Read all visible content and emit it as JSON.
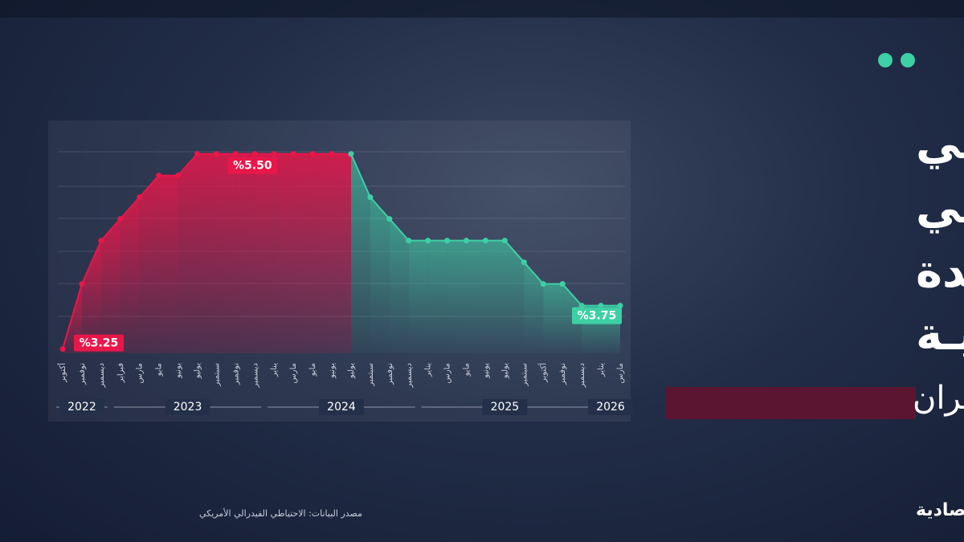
{
  "headline": [
    "الفيدرالـــي",
    "الأمريكـــي",
    "يثبت الفائدة",
    "للمرة الثانيـة"
  ],
  "subtitle": "وسط حرب إيـران",
  "source": "مصدر البيانات: الاحتياطي الفيدرالي الأمريكي",
  "brand": "الاقتصادية",
  "chart_data": {
    "type": "line",
    "groups": [
      {
        "label": "2022",
        "categories": [
          "أكتوبر",
          "نوفمبر",
          "ديسمبر"
        ]
      },
      {
        "label": "2023",
        "categories": [
          "فبراير",
          "مارس",
          "مايو",
          "يونيو",
          "يوليو",
          "سبتمبر",
          "نوفمبر",
          "ديسمبر"
        ]
      },
      {
        "label": "2024",
        "categories": [
          "يناير",
          "مارس",
          "مايو",
          "يونيو",
          "يوليو",
          "سبتمبر",
          "نوفمبر",
          "ديسمبر"
        ]
      },
      {
        "label": "2025",
        "categories": [
          "يناير",
          "مارس",
          "مايو",
          "يونيو",
          "يوليو",
          "سبتمبر",
          "أكتوبر",
          "نوفمبر",
          "ديسمبر"
        ]
      },
      {
        "label": "2026",
        "categories": [
          "يناير",
          "مارس"
        ]
      }
    ],
    "values": [
      3.25,
      4.0,
      4.5,
      4.75,
      5.0,
      5.25,
      5.25,
      5.5,
      5.5,
      5.5,
      5.5,
      5.5,
      5.5,
      5.5,
      5.5,
      5.5,
      5.0,
      4.75,
      4.5,
      4.5,
      4.5,
      4.5,
      4.5,
      4.5,
      4.25,
      4.0,
      4.0,
      3.75,
      3.75,
      3.75
    ],
    "value_labels": [
      "%3.25",
      null,
      null,
      null,
      null,
      null,
      null,
      null,
      null,
      null,
      "%5.50",
      null,
      null,
      null,
      null,
      null,
      null,
      null,
      null,
      null,
      null,
      null,
      null,
      null,
      null,
      null,
      null,
      null,
      null,
      "%3.75"
    ],
    "colors": {
      "hike": "#e8174a",
      "cut": "#3ecfa5"
    },
    "ylim": [
      3.2,
      5.7
    ]
  }
}
